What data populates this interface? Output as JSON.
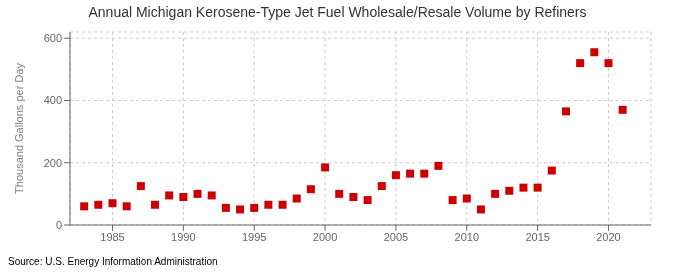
{
  "chart_data": {
    "type": "scatter",
    "title": "Annual Michigan Kerosene-Type Jet Fuel Wholesale/Resale Volume by Refiners",
    "ylabel": "Thousand Gallons per Day",
    "annotations": [
      "Source: U.S. Energy Information Administration"
    ],
    "x": [
      1983,
      1984,
      1985,
      1986,
      1987,
      1988,
      1989,
      1990,
      1991,
      1992,
      1993,
      1994,
      1995,
      1996,
      1997,
      1998,
      1999,
      2000,
      2001,
      2002,
      2003,
      2004,
      2005,
      2006,
      2007,
      2008,
      2009,
      2010,
      2011,
      2012,
      2013,
      2014,
      2015,
      2016,
      2017,
      2018,
      2019,
      2020,
      2021
    ],
    "values": [
      60,
      65,
      70,
      60,
      125,
      65,
      95,
      90,
      100,
      95,
      55,
      50,
      55,
      65,
      65,
      85,
      115,
      185,
      100,
      90,
      80,
      125,
      160,
      165,
      165,
      190,
      80,
      85,
      50,
      100,
      110,
      120,
      120,
      175,
      365,
      520,
      555,
      520,
      370
    ],
    "color": "#cc0000",
    "marker": "square",
    "xlim": [
      1982,
      2023
    ],
    "ylim": [
      0,
      620
    ],
    "xticks": [
      1985,
      1990,
      1995,
      2000,
      2005,
      2010,
      2015,
      2020
    ],
    "yticks": [
      0,
      200,
      400,
      600
    ],
    "grid": true
  }
}
